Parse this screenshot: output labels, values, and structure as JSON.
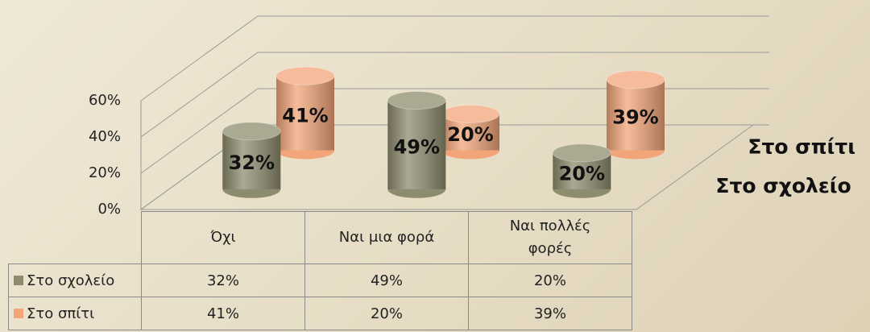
{
  "chart_data": {
    "type": "bar3d",
    "categories": [
      "Όχι",
      "Ναι μια φορά",
      "Ναι πολλές φορές"
    ],
    "series": [
      {
        "name": "Στο σχολείο",
        "color": "#8e8c6e",
        "values": [
          32,
          49,
          20
        ],
        "value_labels": [
          "32%",
          "49%",
          "20%"
        ]
      },
      {
        "name": "Στο σπίτι",
        "color": "#f2a579",
        "values": [
          41,
          20,
          39
        ],
        "value_labels": [
          "41%",
          "20%",
          "39%"
        ]
      }
    ],
    "ylim": [
      0,
      60
    ],
    "yticks": [
      {
        "value": 0,
        "label": "0%"
      },
      {
        "value": 20,
        "label": "20%"
      },
      {
        "value": 40,
        "label": "40%"
      },
      {
        "value": 60,
        "label": "60%"
      }
    ],
    "grid": true,
    "data_table": true
  }
}
